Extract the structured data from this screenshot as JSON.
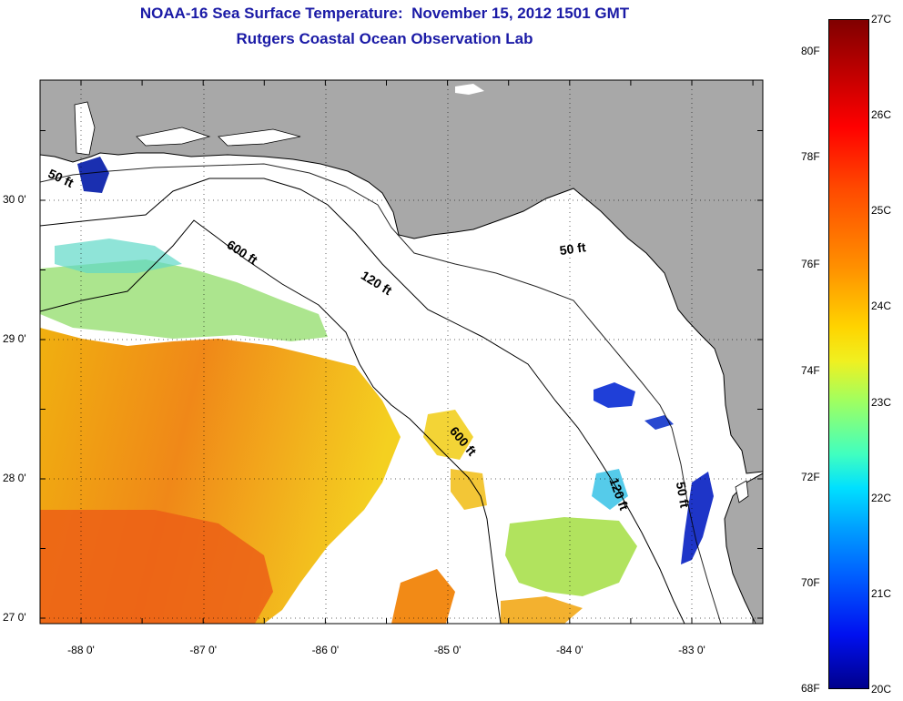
{
  "title": {
    "line1": "NOAA-16 Sea Surface Temperature:  November 15, 2012 1501 GMT",
    "line2": "Rutgers Coastal Ocean Observation Lab"
  },
  "map": {
    "lat_ticks": [
      {
        "value": 30,
        "label": "30 0'"
      },
      {
        "value": 29,
        "label": "29 0'"
      },
      {
        "value": 28,
        "label": "28 0'"
      },
      {
        "value": 27,
        "label": "27 0'"
      }
    ],
    "lon_ticks": [
      {
        "value": -88,
        "label": "-88 0'"
      },
      {
        "value": -87,
        "label": "-87 0'"
      },
      {
        "value": -86,
        "label": "-86 0'"
      },
      {
        "value": -85,
        "label": "-85 0'"
      },
      {
        "value": -84,
        "label": "-84 0'"
      },
      {
        "value": -83,
        "label": "-83 0'"
      }
    ],
    "contour_labels": [
      {
        "text": "50 ft",
        "lon": -88.18,
        "lat": 30.13,
        "rotate": 25
      },
      {
        "text": "600 ft",
        "lon": -86.7,
        "lat": 29.6,
        "rotate": 33
      },
      {
        "text": "120 ft",
        "lon": -85.6,
        "lat": 29.38,
        "rotate": 32
      },
      {
        "text": "50 ft",
        "lon": -83.97,
        "lat": 29.62,
        "rotate": -8
      },
      {
        "text": "600 ft",
        "lon": -84.9,
        "lat": 28.25,
        "rotate": 50
      },
      {
        "text": "120 ft",
        "lon": -83.63,
        "lat": 27.88,
        "rotate": 70
      },
      {
        "text": "50 ft",
        "lon": -83.11,
        "lat": 27.88,
        "rotate": 80
      }
    ],
    "colors": {
      "land": "#a8a8a8",
      "ocean": "#ffffff",
      "outline": "#000000"
    }
  },
  "colorbar": {
    "f_labels": [
      {
        "label": "80F",
        "value": 26.67
      },
      {
        "label": "78F",
        "value": 25.56
      },
      {
        "label": "76F",
        "value": 24.44
      },
      {
        "label": "74F",
        "value": 23.33
      },
      {
        "label": "72F",
        "value": 22.22
      },
      {
        "label": "70F",
        "value": 21.11
      },
      {
        "label": "68F",
        "value": 20.0
      }
    ],
    "c_labels": [
      {
        "label": "27C",
        "value": 27
      },
      {
        "label": "26C",
        "value": 26
      },
      {
        "label": "25C",
        "value": 25
      },
      {
        "label": "24C",
        "value": 24
      },
      {
        "label": "23C",
        "value": 23
      },
      {
        "label": "22C",
        "value": 22
      },
      {
        "label": "21C",
        "value": 21
      },
      {
        "label": "20C",
        "value": 20
      }
    ],
    "min_c": 20,
    "max_c": 27
  }
}
